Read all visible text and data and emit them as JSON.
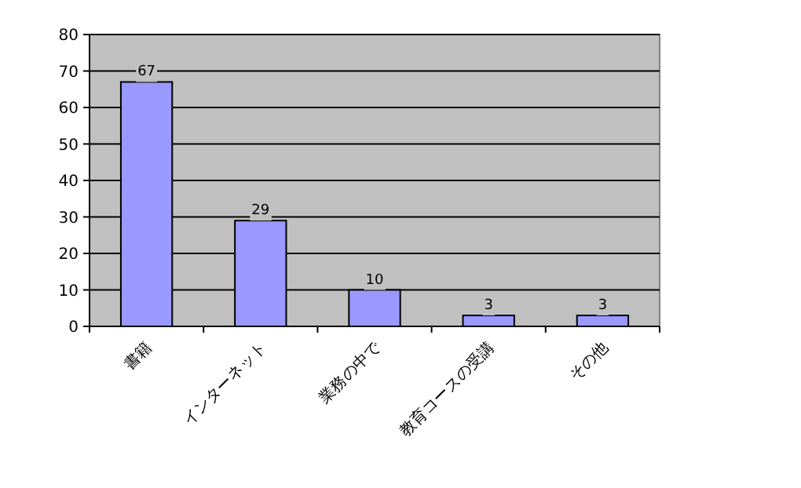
{
  "chart_data": {
    "type": "bar",
    "categories": [
      "書籍",
      "インターネット",
      "業務の中で",
      "教育コースの受講",
      "その他"
    ],
    "values": [
      67,
      29,
      10,
      3,
      3
    ],
    "color": "#9999ff",
    "ylim": [
      0,
      80
    ],
    "yticks": [
      0,
      10,
      20,
      30,
      40,
      50,
      60,
      70,
      80
    ],
    "grid": "y",
    "data_labels": true
  }
}
